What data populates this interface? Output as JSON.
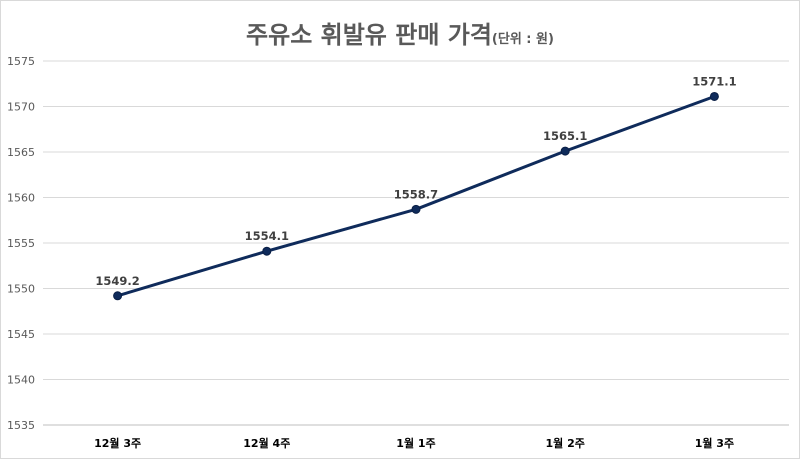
{
  "chart_data": {
    "type": "line",
    "title": "주유소 휘발유 판매 가격",
    "title_unit": "(단위 : 원)",
    "categories": [
      "12월 3주",
      "12월 4주",
      "1월 1주",
      "1월 2주",
      "1월 3주"
    ],
    "series": [
      {
        "values": [
          1549.2,
          1554.1,
          1558.7,
          1565.1,
          1571.1
        ]
      }
    ],
    "data_labels": [
      "1549.2",
      "1554.1",
      "1558.7",
      "1565.1",
      "1571.1"
    ],
    "ylim": [
      1535,
      1575
    ],
    "yticks": [
      1535,
      1540,
      1545,
      1550,
      1555,
      1560,
      1565,
      1570,
      1575
    ],
    "grid": true,
    "legend": "none",
    "colors": {
      "line": "#0f2b5b",
      "marker": "#0f2b5b",
      "grid": "#d9d9d9",
      "title": "#595959"
    }
  }
}
